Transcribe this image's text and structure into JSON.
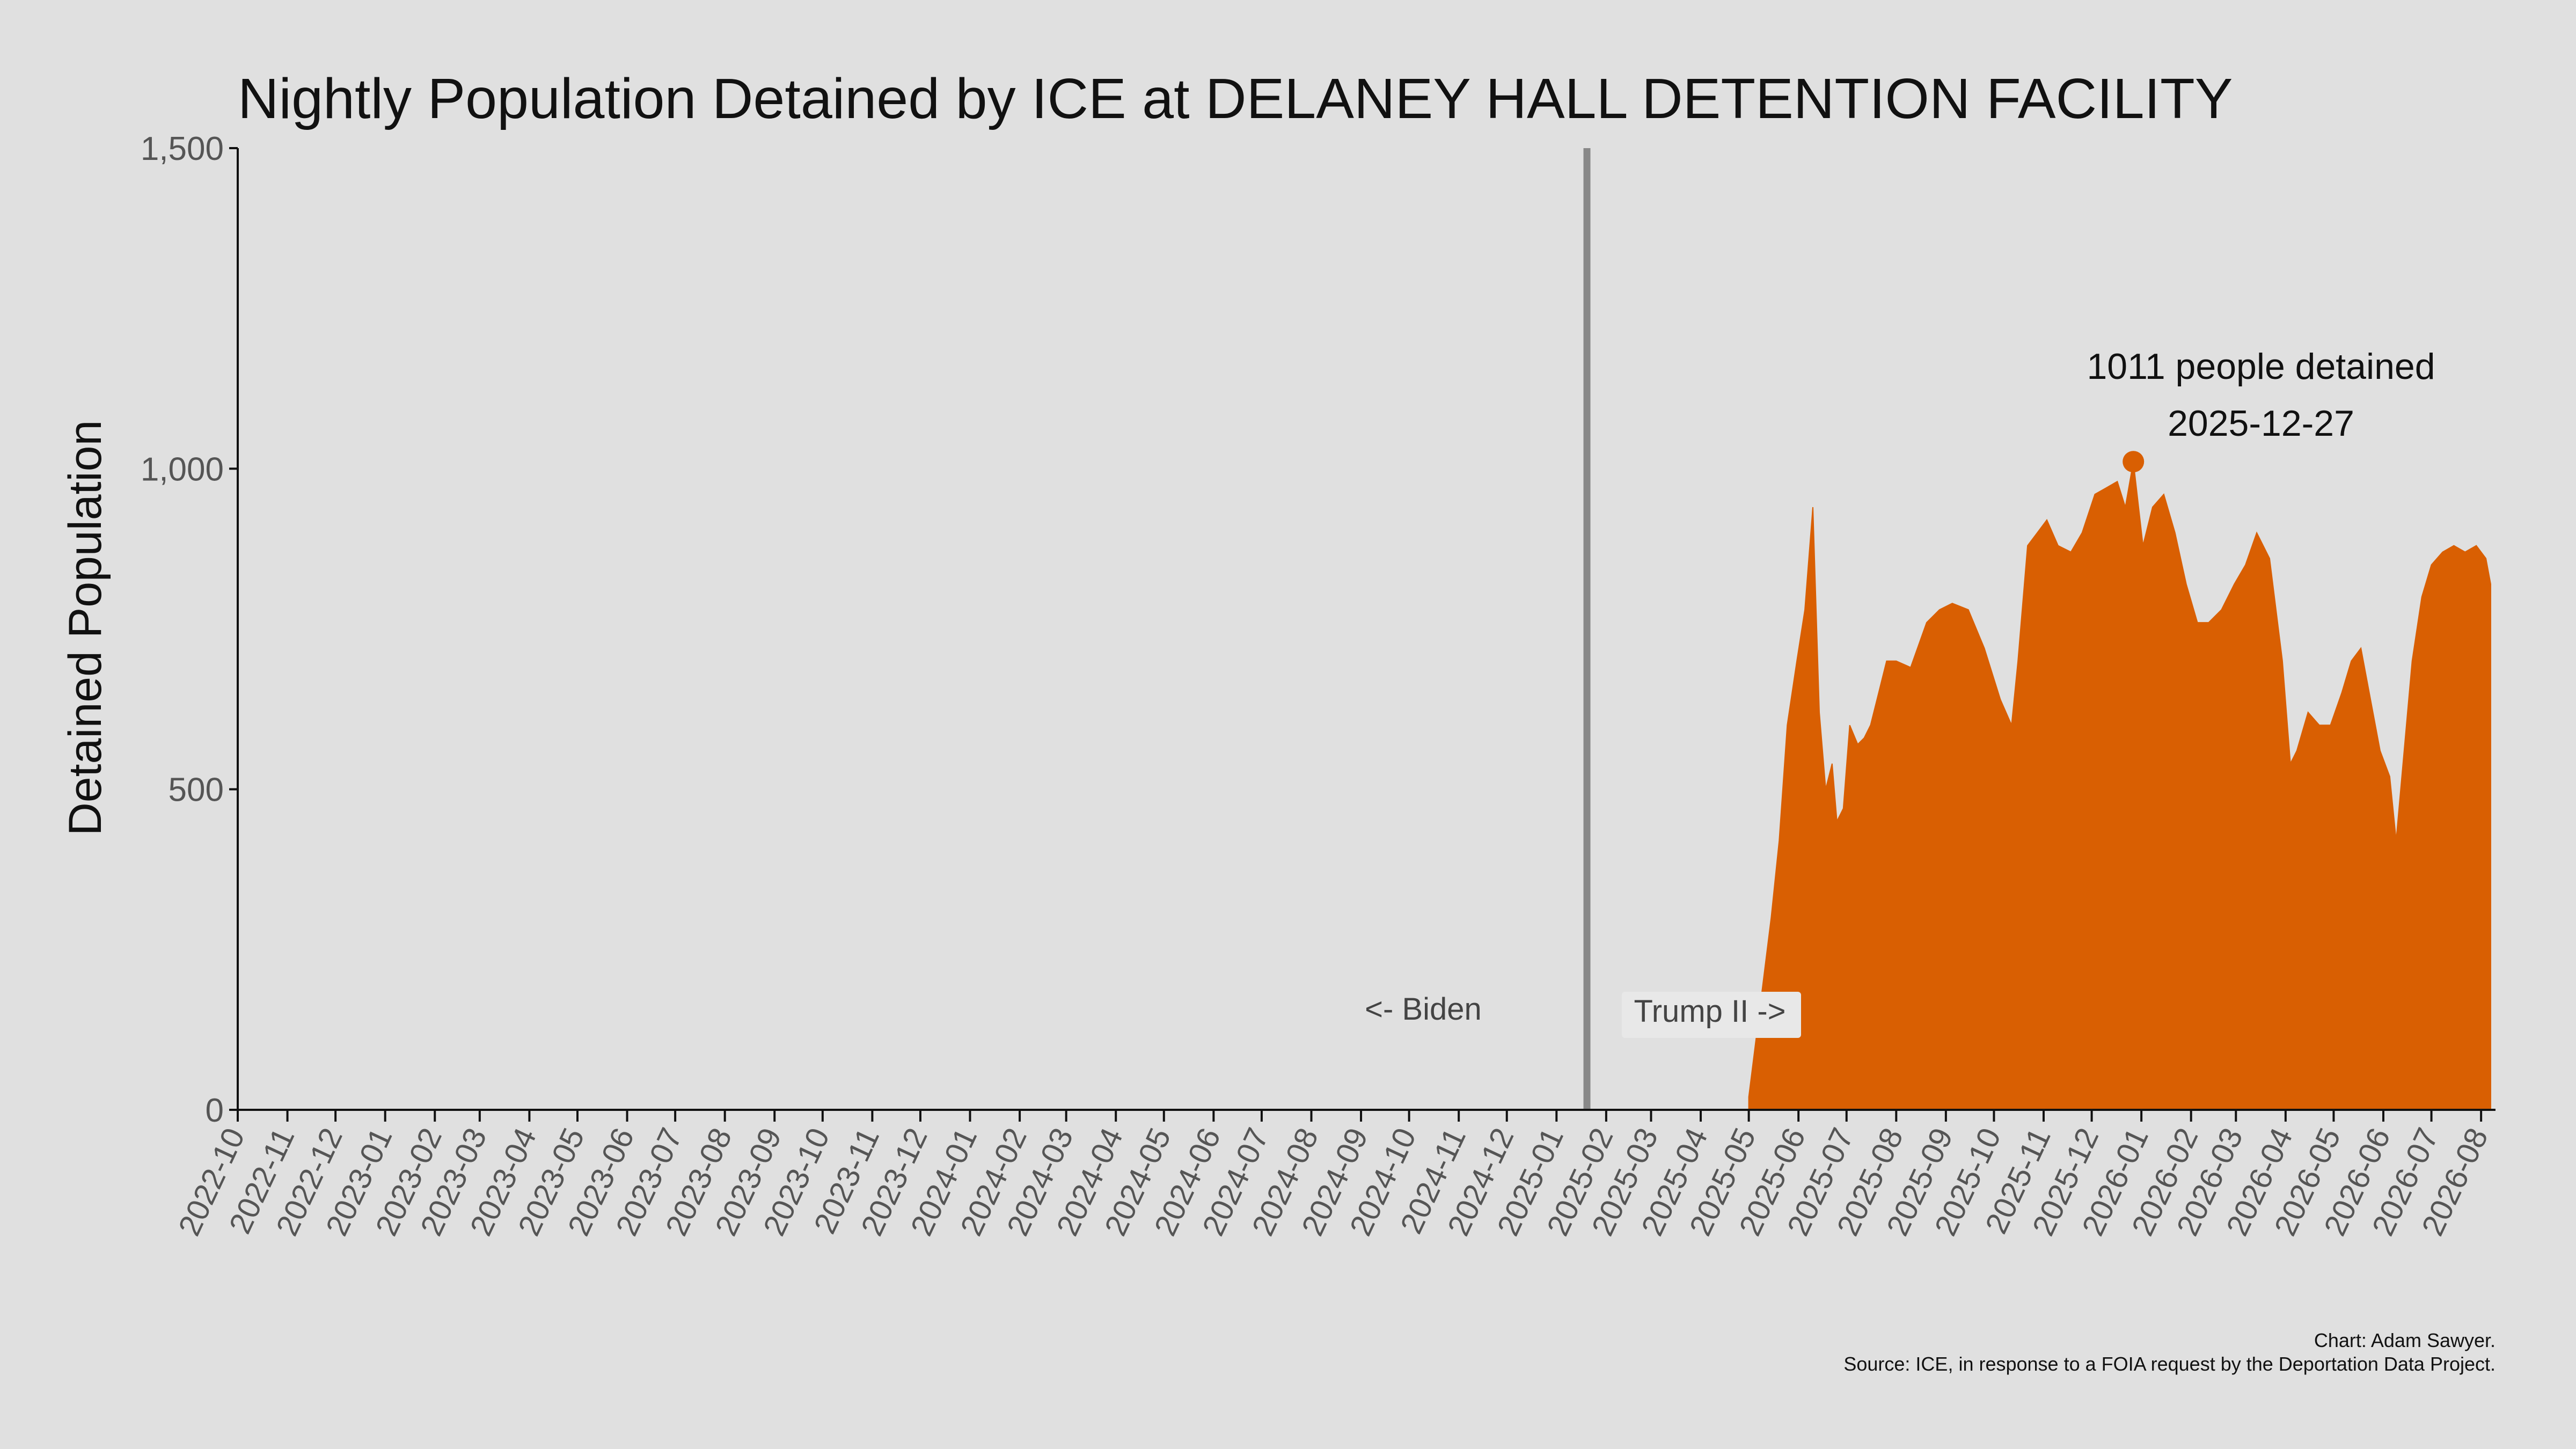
{
  "chart_data": {
    "type": "area",
    "title": "Nightly Population Detained by ICE at DELANEY HALL DETENTION FACILITY",
    "xlabel": "",
    "ylabel": "Detained Population",
    "x_ticks": [
      "2022-10",
      "2022-11",
      "2022-12",
      "2023-01",
      "2023-02",
      "2023-03",
      "2023-04",
      "2023-05",
      "2023-06",
      "2023-07",
      "2023-08",
      "2023-09",
      "2023-10",
      "2023-11",
      "2023-12",
      "2024-01",
      "2024-02",
      "2024-03",
      "2024-04",
      "2024-05",
      "2024-06",
      "2024-07",
      "2024-08",
      "2024-09",
      "2024-10",
      "2024-11",
      "2024-12",
      "2025-01",
      "2025-02",
      "2025-03",
      "2025-04",
      "2025-05",
      "2025-06",
      "2025-07",
      "2025-08",
      "2025-09",
      "2025-10",
      "2025-11",
      "2025-12",
      "2026-01",
      "2026-02",
      "2026-03",
      "2026-04",
      "2026-05",
      "2026-06",
      "2026-07",
      "2026-08"
    ],
    "y_ticks": [
      "0",
      "500",
      "1,000",
      "1,500"
    ],
    "ylim": [
      0,
      1500
    ],
    "xlim": [
      "2022-10-01",
      "2026-08-10"
    ],
    "fill_color": "#d95f02",
    "grid": false,
    "series": [
      {
        "x": [
          "2025-05-01",
          "2025-05-05",
          "2025-05-10",
          "2025-05-15",
          "2025-05-20",
          "2025-05-25",
          "2025-05-31",
          "2025-06-05",
          "2025-06-10",
          "2025-06-14",
          "2025-06-18",
          "2025-06-22",
          "2025-06-25",
          "2025-06-29",
          "2025-07-03",
          "2025-07-08",
          "2025-07-12",
          "2025-07-16",
          "2025-07-21",
          "2025-07-26",
          "2025-08-01",
          "2025-08-10",
          "2025-08-20",
          "2025-08-28",
          "2025-09-05",
          "2025-09-15",
          "2025-09-25",
          "2025-10-05",
          "2025-10-12",
          "2025-10-16",
          "2025-10-22",
          "2025-10-28",
          "2025-11-03",
          "2025-11-10",
          "2025-11-18",
          "2025-11-25",
          "2025-12-03",
          "2025-12-10",
          "2025-12-17",
          "2025-12-22",
          "2025-12-27",
          "2026-01-02",
          "2026-01-08",
          "2026-01-15",
          "2026-01-22",
          "2026-01-29",
          "2026-02-05",
          "2026-02-12",
          "2026-02-20",
          "2026-02-28",
          "2026-03-07",
          "2026-03-14",
          "2026-03-22",
          "2026-03-30",
          "2026-04-04",
          "2026-04-08",
          "2026-04-15",
          "2026-04-22",
          "2026-04-29",
          "2026-05-06",
          "2026-05-12",
          "2026-05-18",
          "2026-05-24",
          "2026-05-30",
          "2026-06-05",
          "2026-06-09",
          "2026-06-14",
          "2026-06-19",
          "2026-06-25",
          "2026-07-01",
          "2026-07-08",
          "2026-07-15",
          "2026-07-22",
          "2026-07-29",
          "2026-08-04",
          "2026-08-07"
        ],
        "y": [
          20,
          100,
          200,
          300,
          420,
          600,
          700,
          780,
          940,
          620,
          500,
          540,
          450,
          470,
          600,
          570,
          580,
          600,
          650,
          700,
          700,
          690,
          760,
          780,
          790,
          780,
          720,
          640,
          600,
          700,
          880,
          900,
          920,
          880,
          870,
          900,
          960,
          970,
          980,
          940,
          1011,
          880,
          940,
          960,
          900,
          820,
          760,
          760,
          780,
          820,
          850,
          900,
          860,
          700,
          540,
          560,
          620,
          600,
          600,
          650,
          700,
          720,
          640,
          560,
          520,
          420,
          560,
          700,
          800,
          850,
          870,
          880,
          870,
          880,
          860,
          820
        ]
      }
    ],
    "marker": {
      "x": "2025-12-27",
      "y": 1011
    },
    "vline": {
      "x": "2025-01-20",
      "color": "#888888"
    },
    "annotations": {
      "peak_line1": "1011 people detained",
      "peak_line2": "2025-12-27",
      "left_label": "<- Biden",
      "right_label": "Trump II ->"
    },
    "credits": {
      "line1": "Chart: Adam Sawyer.",
      "line2": "Source: ICE, in response to a FOIA request by the Deportation Data Project."
    }
  }
}
